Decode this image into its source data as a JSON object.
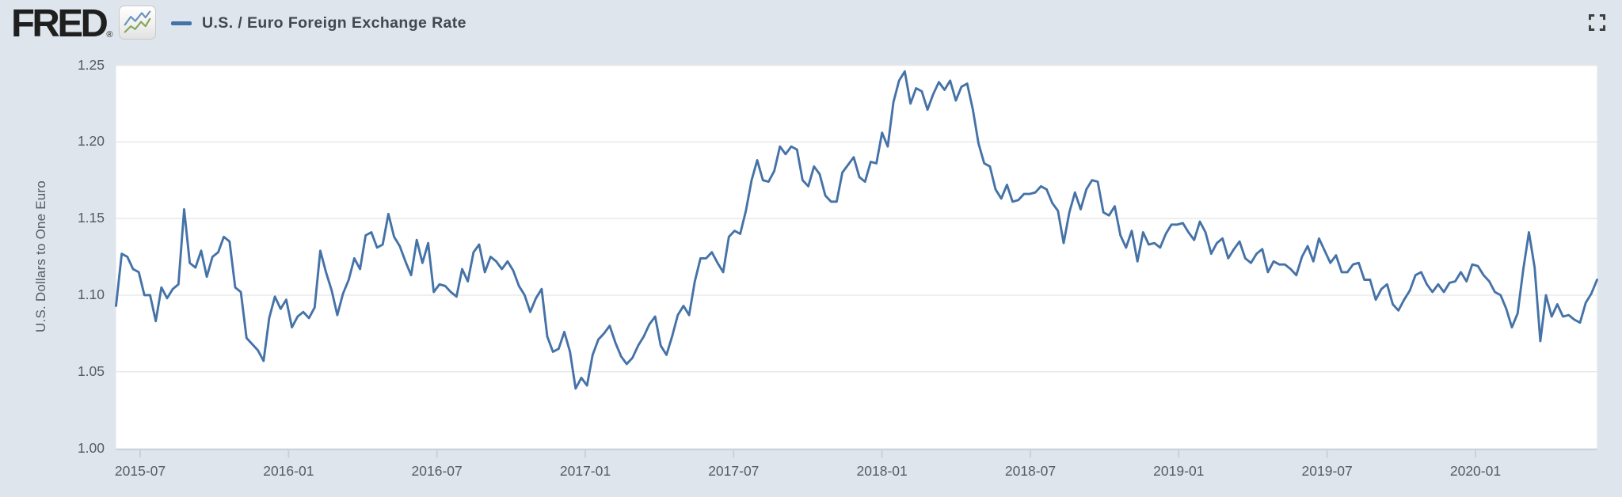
{
  "header": {
    "logo_text": "FRED",
    "registered_mark": "®",
    "series_title": "U.S. / Euro Foreign Exchange Rate"
  },
  "icons": {
    "logo_chart_icon": "two upward zigzag sparklines, blue and green",
    "fullscreen_icon": "four corner brackets (expand to fullscreen)"
  },
  "colors": {
    "background": "#dee5ec",
    "plot_background": "#ffffff",
    "gridline": "#e7e7e7",
    "axis_line": "#c6d0dc",
    "tick_text": "#565b61",
    "title_text": "#43484e",
    "series_line": "#4572a7",
    "logo_blue": "#6b93bc",
    "logo_green": "#86a85c"
  },
  "chart_data": {
    "type": "line",
    "title": "U.S. / Euro Foreign Exchange Rate",
    "xlabel": "",
    "ylabel": "U.S. Dollars to One Euro",
    "ylim": [
      1.0,
      1.25
    ],
    "y_tick_labels": [
      "1.00",
      "1.05",
      "1.10",
      "1.15",
      "1.20",
      "1.25"
    ],
    "x_tick_labels": [
      "2015-07",
      "2016-01",
      "2016-07",
      "2017-01",
      "2017-07",
      "2018-01",
      "2018-07",
      "2019-01",
      "2019-07",
      "2020-01"
    ],
    "grid": "horizontal",
    "legend_position": "top-left",
    "series": [
      {
        "name": "U.S. / Euro Foreign Exchange Rate",
        "color": "#4572a7",
        "start_date": "2015-06-01",
        "end_date": "2020-06-01",
        "interval_days": 7,
        "values": [
          1.093,
          1.127,
          1.125,
          1.117,
          1.115,
          1.1,
          1.1,
          1.083,
          1.105,
          1.098,
          1.104,
          1.107,
          1.156,
          1.121,
          1.118,
          1.129,
          1.112,
          1.125,
          1.128,
          1.138,
          1.135,
          1.105,
          1.102,
          1.072,
          1.068,
          1.064,
          1.057,
          1.085,
          1.099,
          1.091,
          1.097,
          1.079,
          1.086,
          1.089,
          1.085,
          1.092,
          1.129,
          1.115,
          1.103,
          1.087,
          1.101,
          1.11,
          1.124,
          1.117,
          1.139,
          1.141,
          1.131,
          1.133,
          1.153,
          1.138,
          1.132,
          1.122,
          1.113,
          1.136,
          1.121,
          1.134,
          1.102,
          1.107,
          1.106,
          1.102,
          1.099,
          1.117,
          1.109,
          1.128,
          1.133,
          1.115,
          1.125,
          1.122,
          1.117,
          1.122,
          1.116,
          1.106,
          1.1,
          1.089,
          1.098,
          1.104,
          1.073,
          1.063,
          1.065,
          1.076,
          1.063,
          1.039,
          1.046,
          1.041,
          1.061,
          1.071,
          1.075,
          1.08,
          1.069,
          1.06,
          1.055,
          1.059,
          1.067,
          1.073,
          1.081,
          1.086,
          1.067,
          1.061,
          1.073,
          1.087,
          1.093,
          1.087,
          1.109,
          1.124,
          1.124,
          1.128,
          1.121,
          1.115,
          1.138,
          1.142,
          1.14,
          1.155,
          1.175,
          1.188,
          1.175,
          1.174,
          1.181,
          1.197,
          1.192,
          1.197,
          1.195,
          1.175,
          1.171,
          1.184,
          1.179,
          1.165,
          1.161,
          1.161,
          1.18,
          1.185,
          1.19,
          1.177,
          1.174,
          1.187,
          1.186,
          1.206,
          1.197,
          1.226,
          1.24,
          1.246,
          1.225,
          1.235,
          1.233,
          1.221,
          1.231,
          1.239,
          1.234,
          1.24,
          1.227,
          1.236,
          1.238,
          1.221,
          1.199,
          1.186,
          1.184,
          1.169,
          1.163,
          1.172,
          1.161,
          1.162,
          1.166,
          1.166,
          1.167,
          1.171,
          1.169,
          1.16,
          1.155,
          1.134,
          1.154,
          1.167,
          1.156,
          1.169,
          1.175,
          1.174,
          1.154,
          1.152,
          1.158,
          1.139,
          1.131,
          1.142,
          1.122,
          1.141,
          1.133,
          1.134,
          1.131,
          1.14,
          1.146,
          1.146,
          1.147,
          1.141,
          1.136,
          1.148,
          1.141,
          1.127,
          1.134,
          1.137,
          1.124,
          1.13,
          1.135,
          1.124,
          1.121,
          1.127,
          1.13,
          1.115,
          1.122,
          1.12,
          1.12,
          1.117,
          1.113,
          1.125,
          1.132,
          1.122,
          1.137,
          1.129,
          1.121,
          1.126,
          1.115,
          1.115,
          1.12,
          1.121,
          1.11,
          1.11,
          1.097,
          1.104,
          1.107,
          1.094,
          1.09,
          1.097,
          1.103,
          1.113,
          1.115,
          1.107,
          1.102,
          1.107,
          1.102,
          1.108,
          1.109,
          1.115,
          1.109,
          1.12,
          1.119,
          1.113,
          1.109,
          1.102,
          1.1,
          1.091,
          1.079,
          1.088,
          1.117,
          1.141,
          1.118,
          1.07,
          1.1,
          1.086,
          1.094,
          1.086,
          1.087,
          1.084,
          1.082,
          1.095,
          1.101,
          1.11
        ]
      }
    ]
  }
}
